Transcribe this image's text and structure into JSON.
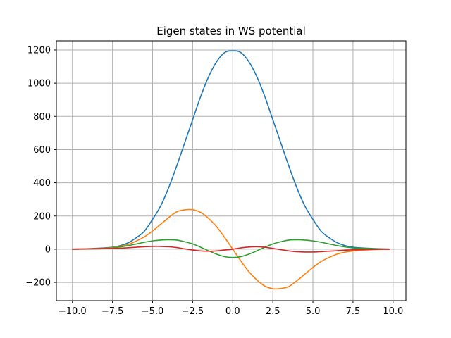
{
  "chart_data": {
    "type": "line",
    "title": "Eigen states in WS potential",
    "xlabel": "",
    "ylabel": "",
    "xlim": [
      -11.0,
      10.8
    ],
    "ylim": [
      -310,
      1255
    ],
    "grid": true,
    "legend": "none",
    "x_ticks": [
      -10.0,
      -7.5,
      -5.0,
      -2.5,
      0.0,
      2.5,
      5.0,
      7.5,
      10.0
    ],
    "x_tick_labels": [
      "−10.0",
      "−7.5",
      "−5.0",
      "−2.5",
      "0.0",
      "2.5",
      "5.0",
      "7.5",
      "10.0"
    ],
    "y_ticks": [
      -200,
      0,
      200,
      400,
      600,
      800,
      1000,
      1200
    ],
    "y_tick_labels": [
      "−200",
      "0",
      "200",
      "400",
      "600",
      "800",
      "1000",
      "1200"
    ],
    "x": [
      -10.0,
      -9.0,
      -8.0,
      -7.5,
      -7.0,
      -6.5,
      -6.0,
      -5.5,
      -5.0,
      -4.5,
      -4.0,
      -3.5,
      -3.0,
      -2.5,
      -2.0,
      -1.5,
      -1.0,
      -0.5,
      0.0,
      0.5,
      1.0,
      1.5,
      2.0,
      2.5,
      3.0,
      3.5,
      4.0,
      4.5,
      5.0,
      5.5,
      6.0,
      6.5,
      7.0,
      7.5,
      8.0,
      9.0,
      9.8
    ],
    "series": [
      {
        "color": "#1f77b4",
        "values": [
          1,
          3,
          8,
          12,
          22,
          40,
          70,
          110,
          180,
          260,
          370,
          500,
          640,
          780,
          920,
          1040,
          1130,
          1185,
          1195,
          1185,
          1130,
          1040,
          920,
          780,
          640,
          500,
          370,
          260,
          180,
          110,
          70,
          40,
          22,
          12,
          8,
          3,
          1
        ]
      },
      {
        "color": "#ff7f0e",
        "values": [
          0,
          2,
          6,
          10,
          18,
          30,
          50,
          75,
          110,
          150,
          190,
          225,
          237,
          238,
          222,
          185,
          135,
          70,
          0,
          -70,
          -135,
          -185,
          -222,
          -238,
          -237,
          -225,
          -190,
          -150,
          -110,
          -75,
          -50,
          -30,
          -18,
          -10,
          -6,
          -2,
          0
        ]
      },
      {
        "color": "#2ca02c",
        "values": [
          0,
          2,
          5,
          8,
          14,
          22,
          32,
          42,
          50,
          55,
          57,
          55,
          45,
          32,
          12,
          -10,
          -30,
          -45,
          -50,
          -45,
          -30,
          -10,
          12,
          32,
          45,
          55,
          57,
          55,
          50,
          42,
          32,
          22,
          14,
          8,
          5,
          2,
          0
        ]
      },
      {
        "color": "#d62728",
        "values": [
          0,
          1,
          3,
          4,
          6,
          9,
          12,
          15,
          17,
          17,
          15,
          10,
          2,
          -5,
          -10,
          -12,
          -10,
          -5,
          0,
          8,
          13,
          15,
          12,
          5,
          -3,
          -10,
          -15,
          -17,
          -17,
          -15,
          -12,
          -9,
          -6,
          -4,
          -3,
          -1,
          0
        ]
      }
    ]
  }
}
